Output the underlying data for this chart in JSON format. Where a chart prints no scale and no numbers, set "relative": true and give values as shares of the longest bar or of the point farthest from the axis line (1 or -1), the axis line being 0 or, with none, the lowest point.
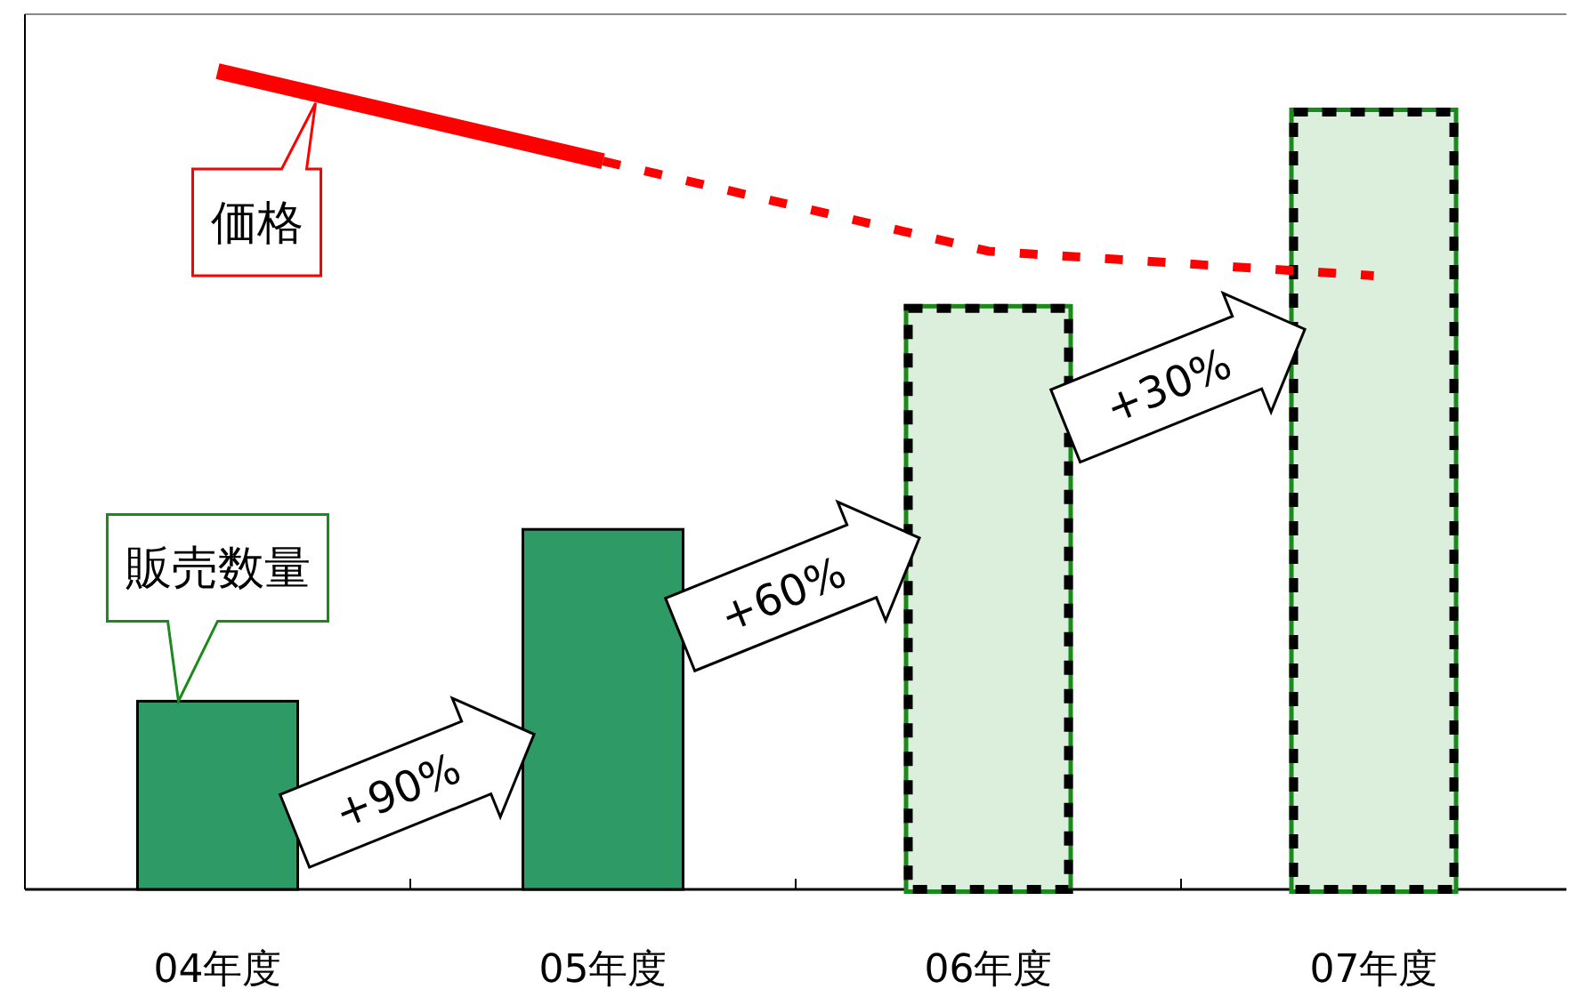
{
  "chart_data": {
    "type": "bar",
    "relative": true,
    "categories": [
      "04年度",
      "05年度",
      "06年度",
      "07年度"
    ],
    "series": [
      {
        "colors": [
          "#2e9a66",
          "#2e9a66",
          "#dcefdc",
          "#dcefdc"
        ],
        "values": [
          0.23,
          0.44,
          0.71,
          0.95
        ]
      },
      {
        "type": "line",
        "color": "#ff0000",
        "line_style": "solid",
        "values": [
          1,
          0.89,
          null,
          null
        ]
      },
      {
        "type": "line",
        "color": "#ff0000",
        "line_style": "dashed",
        "values": [
          null,
          0.89,
          0.78,
          0.75
        ]
      }
    ],
    "annotations": [
      {
        "text": "価格",
        "x": "04年度",
        "y": 1
      },
      {
        "text": "販売数量",
        "x": "04年度",
        "y": 0.23
      },
      "+90%",
      "+60%",
      "+30%"
    ],
    "legend": false
  }
}
